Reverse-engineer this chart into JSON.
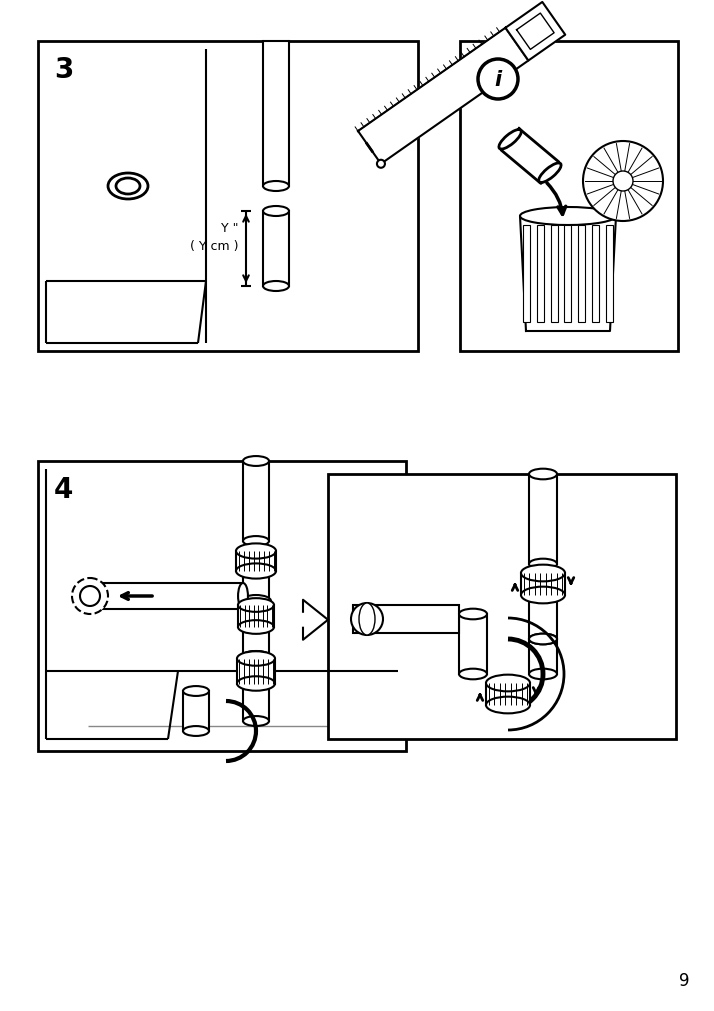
{
  "page_number": "9",
  "bg_color": "#ffffff",
  "line_color": "#000000",
  "step3_label": "3",
  "step4_label": "4",
  "info_label": "i",
  "measurement_text_1": "Y \"",
  "measurement_text_2": "( Y cm )"
}
